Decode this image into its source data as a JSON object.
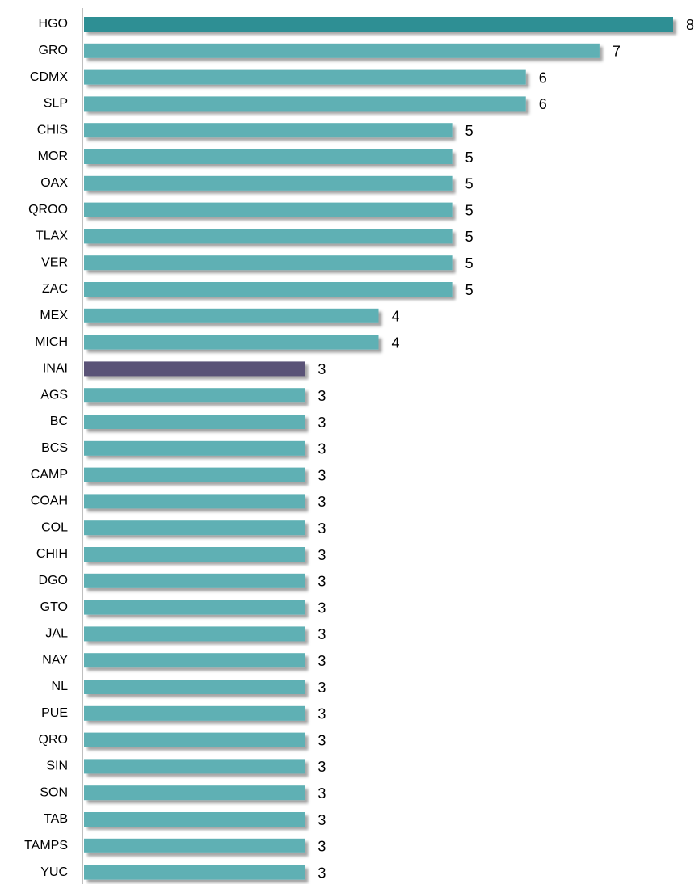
{
  "chart_data": {
    "type": "barh",
    "categories": [
      "HGO",
      "GRO",
      "CDMX",
      "SLP",
      "CHIS",
      "MOR",
      "OAX",
      "QROO",
      "TLAX",
      "VER",
      "ZAC",
      "MEX",
      "MICH",
      "INAI",
      "AGS",
      "BC",
      "BCS",
      "CAMP",
      "COAH",
      "COL",
      "CHIH",
      "DGO",
      "GTO",
      "JAL",
      "NAY",
      "NL",
      "PUE",
      "QRO",
      "SIN",
      "SON",
      "TAB",
      "TAMPS",
      "YUC"
    ],
    "values": [
      8,
      7,
      6,
      6,
      5,
      5,
      5,
      5,
      5,
      5,
      5,
      4,
      4,
      3,
      3,
      3,
      3,
      3,
      3,
      3,
      3,
      3,
      3,
      3,
      3,
      3,
      3,
      3,
      3,
      3,
      3,
      3,
      3
    ],
    "colors": [
      "#2e8f94",
      "#5fb0b4",
      "#5fb0b4",
      "#5fb0b4",
      "#5fb0b4",
      "#5fb0b4",
      "#5fb0b4",
      "#5fb0b4",
      "#5fb0b4",
      "#5fb0b4",
      "#5fb0b4",
      "#5fb0b4",
      "#5fb0b4",
      "#5a5277",
      "#5fb0b4",
      "#5fb0b4",
      "#5fb0b4",
      "#5fb0b4",
      "#5fb0b4",
      "#5fb0b4",
      "#5fb0b4",
      "#5fb0b4",
      "#5fb0b4",
      "#5fb0b4",
      "#5fb0b4",
      "#5fb0b4",
      "#5fb0b4",
      "#5fb0b4",
      "#5fb0b4",
      "#5fb0b4",
      "#5fb0b4",
      "#5fb0b4",
      "#5fb0b4"
    ]
  }
}
